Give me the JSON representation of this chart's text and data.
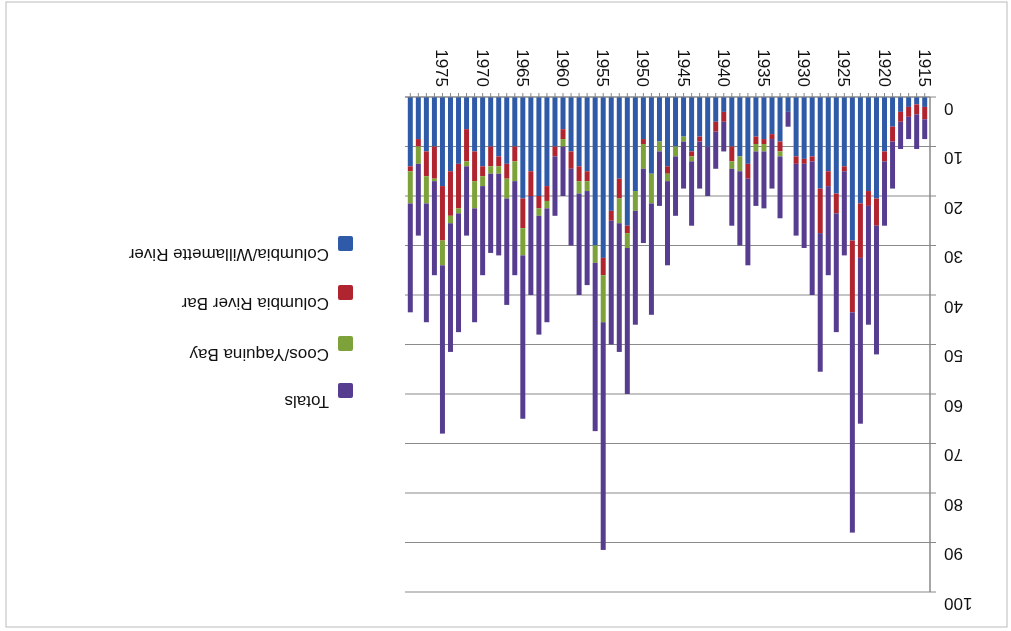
{
  "chart_data": {
    "type": "bar",
    "stacked": true,
    "categories": [
      null,
      null,
      null,
      null,
      "1975",
      null,
      null,
      null,
      null,
      "1970",
      null,
      null,
      null,
      null,
      "1965",
      null,
      null,
      null,
      null,
      "1960",
      null,
      null,
      null,
      null,
      "1955",
      null,
      null,
      null,
      null,
      "1950",
      null,
      null,
      null,
      null,
      "1945",
      null,
      null,
      null,
      null,
      "1940",
      null,
      null,
      null,
      null,
      "1935",
      null,
      null,
      null,
      null,
      "1930",
      null,
      null,
      null,
      null,
      "1925",
      null,
      null,
      null,
      null,
      "1920",
      null,
      null,
      null,
      null,
      "1915"
    ],
    "series": [
      {
        "name": "Columbia/Willamette River",
        "color": "#2f5aa8",
        "values": [
          14,
          8.5,
          11,
          10,
          18,
          15,
          13.5,
          6.5,
          11,
          14,
          10,
          12,
          13.5,
          10,
          20.5,
          15,
          20,
          18,
          10,
          6.5,
          11,
          14,
          15,
          30,
          32.5,
          23,
          16.5,
          26,
          19,
          8.5,
          15.5,
          9,
          14,
          10,
          8,
          11,
          8,
          10,
          5,
          3,
          10,
          12,
          13.5,
          8,
          8.5,
          7.5,
          9,
          3,
          12,
          12.5,
          12,
          18.5,
          15,
          19.5,
          14,
          29,
          21.5,
          19,
          20.5,
          11,
          6,
          3,
          2,
          1.5,
          2
        ]
      },
      {
        "name": "Columbia River Bar",
        "color": "#b0242f",
        "values": [
          1,
          1.5,
          5,
          6.5,
          11,
          9,
          9,
          6.5,
          6,
          2,
          4,
          2,
          3,
          3,
          6,
          5,
          2.5,
          3,
          2,
          2,
          3.5,
          3,
          2,
          0,
          3.5,
          2,
          4,
          1.5,
          0,
          1,
          0,
          0,
          1.5,
          0,
          0,
          1,
          1,
          0,
          2,
          2,
          3,
          0,
          3,
          1.5,
          1,
          1,
          2,
          0,
          1.5,
          1,
          1,
          9,
          3,
          4,
          1,
          14.5,
          11,
          3,
          5.5,
          2,
          3,
          2,
          2,
          2,
          2.5
        ]
      },
      {
        "name": "Coos/Yaquina Bay",
        "color": "#7ea23a",
        "values": [
          6.5,
          3.5,
          5.5,
          0.5,
          5,
          1.5,
          1,
          1,
          5.5,
          2,
          1.5,
          1.5,
          4,
          4,
          5.5,
          0,
          1.5,
          1.5,
          0,
          1.5,
          0,
          2.5,
          2,
          3.5,
          9.5,
          0,
          5,
          3,
          4,
          5,
          6,
          2,
          1.5,
          2,
          1,
          1,
          0,
          0,
          0,
          0,
          1.5,
          3,
          0,
          1.5,
          1.5,
          0,
          1,
          0,
          0,
          0,
          0,
          0,
          0,
          0,
          0,
          0,
          0,
          0,
          0,
          0,
          0,
          0,
          0,
          0,
          0
        ]
      },
      {
        "name": "Totals",
        "color": "#563d8f",
        "values": [
          22,
          14.5,
          24,
          19,
          34,
          26,
          24,
          14,
          23,
          18,
          16,
          16.5,
          21.5,
          19,
          33,
          20,
          24,
          23,
          12,
          10,
          15.5,
          20.5,
          19,
          34,
          46,
          25,
          26,
          29.5,
          23,
          15,
          22.5,
          11,
          17,
          12,
          9.5,
          13,
          9.5,
          10,
          7.5,
          6,
          11.5,
          15,
          17.5,
          11,
          11.5,
          10,
          12.5,
          3,
          14.5,
          17,
          27,
          28,
          18,
          24,
          17,
          44.5,
          33.5,
          24,
          26,
          13,
          9.5,
          5.5,
          4.5,
          7,
          4
        ]
      }
    ],
    "ylim": [
      100,
      0
    ],
    "yticks": [
      100,
      90,
      80,
      70,
      60,
      50,
      40,
      30,
      20,
      10,
      0
    ],
    "grid": "y",
    "legend": "left"
  }
}
